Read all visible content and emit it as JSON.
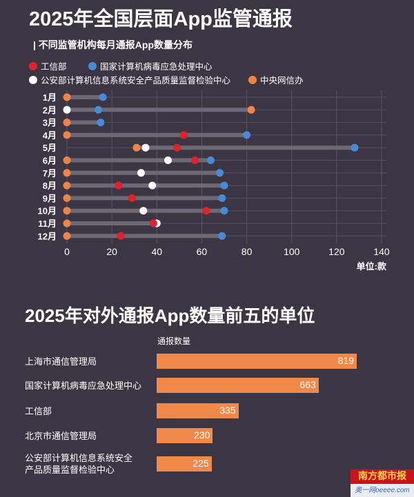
{
  "title": "2025年全国层面App监管通报",
  "subtitle": "| 不同监管机构每月通报App数量分布",
  "colors": {
    "bg": "#3c3644",
    "red": "#e0222b",
    "blue": "#4a8ad4",
    "white": "#ffffff",
    "orange": "#ee8448",
    "track": "#6c6874",
    "bar": "#f0894a"
  },
  "chart_data": [
    {
      "type": "scatter",
      "subtype": "dot-range",
      "title": "不同监管机构每月通报App数量分布",
      "categories": [
        "1月",
        "2月",
        "3月",
        "4月",
        "5月",
        "6月",
        "7月",
        "8月",
        "9月",
        "10月",
        "11月",
        "12月"
      ],
      "xlim": [
        0,
        140
      ],
      "xticks": [
        0,
        20,
        40,
        60,
        80,
        100,
        120,
        140
      ],
      "unit_label": "单位:款",
      "grid": true,
      "legend_position": "top",
      "series": [
        {
          "name": "工信部",
          "color": "#e0222b",
          "values": [
            null,
            null,
            null,
            52,
            49,
            57,
            null,
            23,
            29,
            62,
            38.5,
            24
          ]
        },
        {
          "name": "国家计算机病毒应急处理中心",
          "color": "#4a8ad4",
          "values": [
            16,
            14,
            15,
            80,
            128,
            64,
            68,
            70,
            69,
            70,
            null,
            69
          ]
        },
        {
          "name": "公安部计算机信息系统安全产品质量监督检验中心",
          "color": "#ffffff",
          "values": [
            null,
            0,
            null,
            null,
            35,
            45,
            33,
            38,
            null,
            34,
            40,
            null
          ]
        },
        {
          "name": "中央网信办",
          "color": "#ee8448",
          "values": [
            0,
            82,
            0,
            0,
            31,
            0,
            0,
            0,
            0,
            0,
            0,
            0
          ]
        }
      ]
    },
    {
      "type": "bar",
      "title": "2025年对外通报App数量前五的单位",
      "value_header": "通报数量",
      "categories": [
        "上海市通信管理局",
        "国家计算机病毒应急处理中心",
        "工信部",
        "北京市通信管理局",
        "公安部计算机信息系统安全产品质量监督检验中心"
      ],
      "category_lines": [
        [
          "上海市通信管理局"
        ],
        [
          "国家计算机病毒应急处理中心"
        ],
        [
          "工信部"
        ],
        [
          "北京市通信管理局"
        ],
        [
          "公安部计算机信息系统安全",
          "产品质量监督检验中心"
        ]
      ],
      "values": [
        819,
        663,
        335,
        230,
        225
      ],
      "xlim": [
        0,
        819
      ]
    }
  ],
  "logo": {
    "name": "南方都市报",
    "site": "奥一网oeeee.com"
  }
}
